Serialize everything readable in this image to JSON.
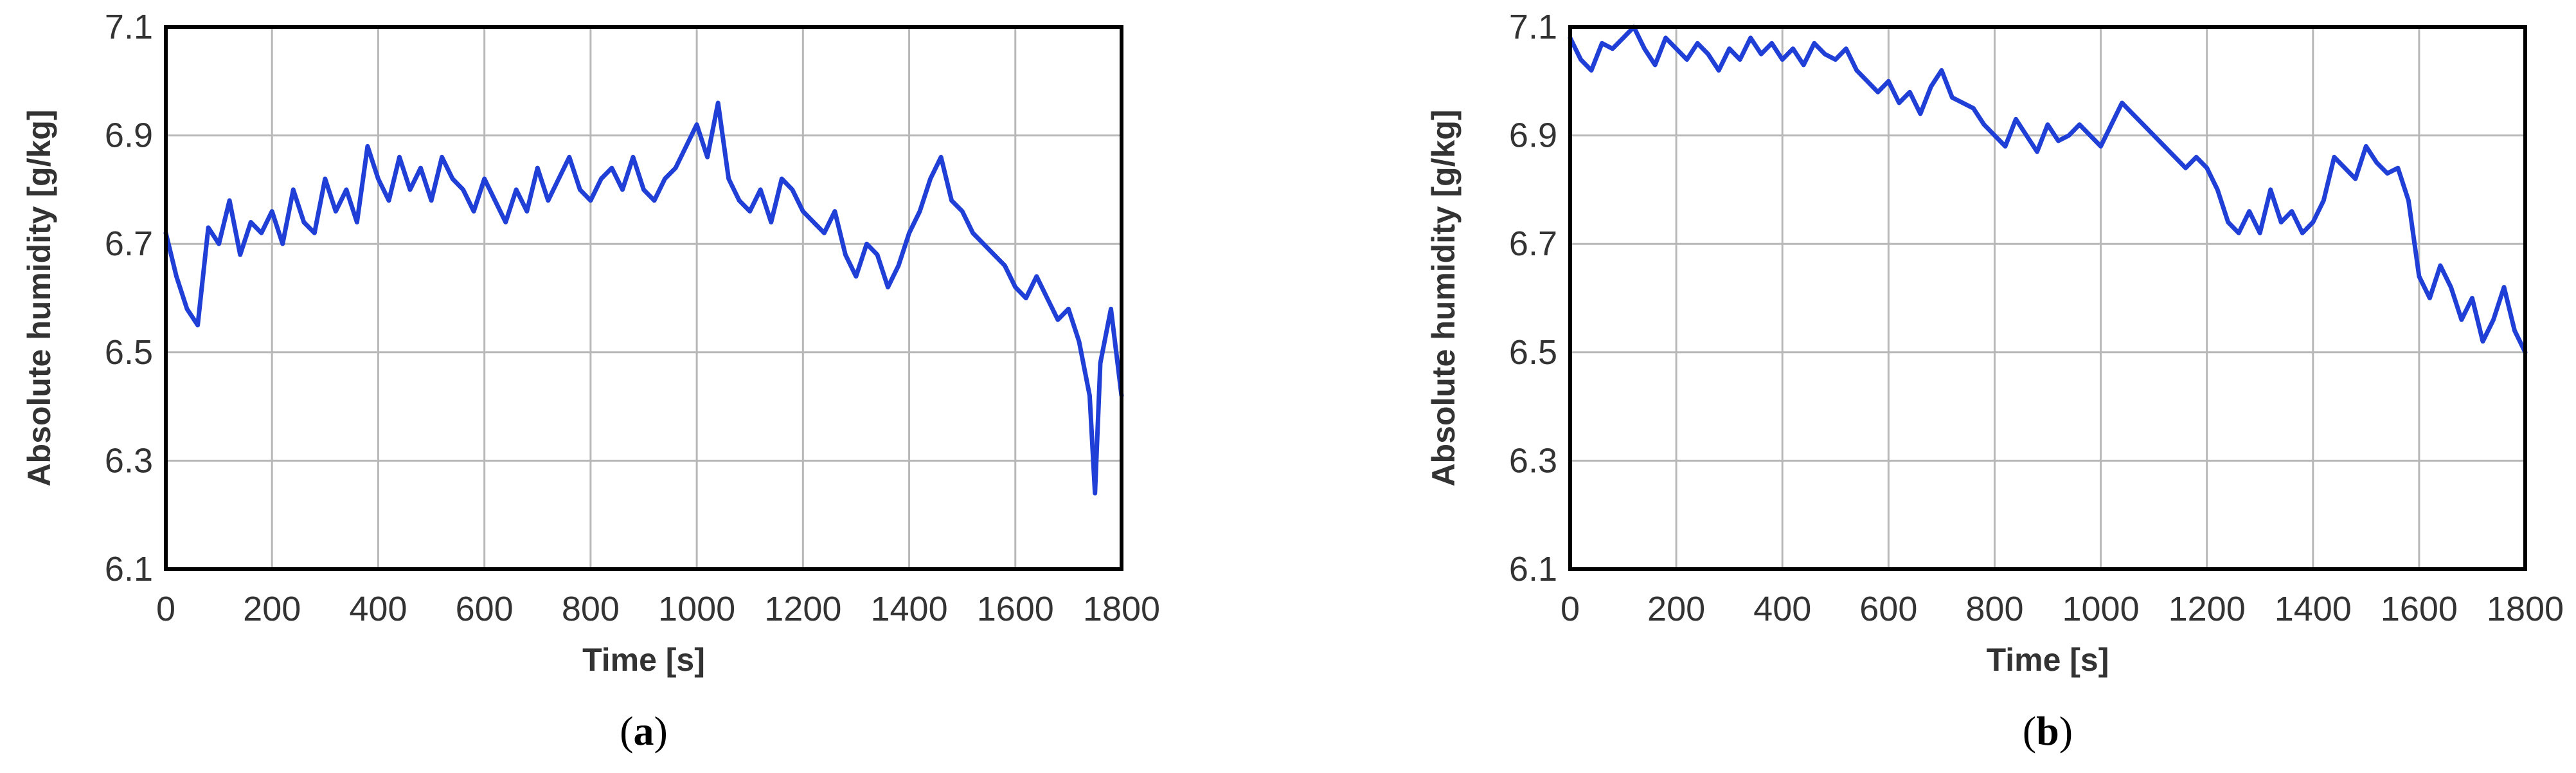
{
  "chart_data": [
    {
      "type": "line",
      "panel_label": "a",
      "xlabel": "Time [s]",
      "ylabel": "Absolute humidity [g/kg]",
      "xlim": [
        0,
        1800
      ],
      "ylim": [
        6.1,
        7.1
      ],
      "xticks": [
        "0",
        "200",
        "400",
        "600",
        "800",
        "1000",
        "1200",
        "1400",
        "1600",
        "1800"
      ],
      "yticks": [
        "6.1",
        "6.3",
        "6.5",
        "6.7",
        "6.9",
        "7.1"
      ],
      "grid": true,
      "series_color": "#1f3fd6",
      "x": [
        0,
        20,
        40,
        60,
        80,
        100,
        120,
        140,
        160,
        180,
        200,
        220,
        240,
        260,
        280,
        300,
        320,
        340,
        360,
        380,
        400,
        420,
        440,
        460,
        480,
        500,
        520,
        540,
        560,
        580,
        600,
        620,
        640,
        660,
        680,
        700,
        720,
        740,
        760,
        780,
        800,
        820,
        840,
        860,
        880,
        900,
        920,
        940,
        960,
        980,
        1000,
        1020,
        1040,
        1060,
        1080,
        1100,
        1120,
        1140,
        1160,
        1180,
        1200,
        1220,
        1240,
        1260,
        1280,
        1300,
        1320,
        1340,
        1360,
        1380,
        1400,
        1420,
        1440,
        1460,
        1480,
        1500,
        1520,
        1540,
        1560,
        1580,
        1600,
        1620,
        1640,
        1660,
        1680,
        1700,
        1720,
        1740,
        1750,
        1760,
        1780,
        1800
      ],
      "y": [
        6.72,
        6.64,
        6.58,
        6.55,
        6.73,
        6.7,
        6.78,
        6.68,
        6.74,
        6.72,
        6.76,
        6.7,
        6.8,
        6.74,
        6.72,
        6.82,
        6.76,
        6.8,
        6.74,
        6.88,
        6.82,
        6.78,
        6.86,
        6.8,
        6.84,
        6.78,
        6.86,
        6.82,
        6.8,
        6.76,
        6.82,
        6.78,
        6.74,
        6.8,
        6.76,
        6.84,
        6.78,
        6.82,
        6.86,
        6.8,
        6.78,
        6.82,
        6.84,
        6.8,
        6.86,
        6.8,
        6.78,
        6.82,
        6.84,
        6.88,
        6.92,
        6.86,
        6.96,
        6.82,
        6.78,
        6.76,
        6.8,
        6.74,
        6.82,
        6.8,
        6.76,
        6.74,
        6.72,
        6.76,
        6.68,
        6.64,
        6.7,
        6.68,
        6.62,
        6.66,
        6.72,
        6.76,
        6.82,
        6.86,
        6.78,
        6.76,
        6.72,
        6.7,
        6.68,
        6.66,
        6.62,
        6.6,
        6.64,
        6.6,
        6.56,
        6.58,
        6.52,
        6.42,
        6.24,
        6.48,
        6.58,
        6.42
      ]
    },
    {
      "type": "line",
      "panel_label": "b",
      "xlabel": "Time [s]",
      "ylabel": "Absolute humidity [g/kg]",
      "xlim": [
        0,
        1800
      ],
      "ylim": [
        6.1,
        7.1
      ],
      "xticks": [
        "0",
        "200",
        "400",
        "600",
        "800",
        "1000",
        "1200",
        "1400",
        "1600",
        "1800"
      ],
      "yticks": [
        "6.1",
        "6.3",
        "6.5",
        "6.7",
        "6.9",
        "7.1"
      ],
      "grid": true,
      "series_color": "#1f3fd6",
      "x": [
        0,
        20,
        40,
        60,
        80,
        100,
        120,
        140,
        160,
        180,
        200,
        220,
        240,
        260,
        280,
        300,
        320,
        340,
        360,
        380,
        400,
        420,
        440,
        460,
        480,
        500,
        520,
        540,
        560,
        580,
        600,
        620,
        640,
        660,
        680,
        700,
        720,
        740,
        760,
        780,
        800,
        820,
        840,
        860,
        880,
        900,
        920,
        940,
        960,
        980,
        1000,
        1020,
        1040,
        1060,
        1080,
        1100,
        1120,
        1140,
        1160,
        1180,
        1200,
        1220,
        1240,
        1260,
        1280,
        1300,
        1320,
        1340,
        1360,
        1380,
        1400,
        1420,
        1440,
        1460,
        1480,
        1500,
        1520,
        1540,
        1560,
        1580,
        1600,
        1620,
        1640,
        1660,
        1680,
        1700,
        1720,
        1740,
        1760,
        1780,
        1800
      ],
      "y": [
        7.08,
        7.04,
        7.02,
        7.07,
        7.06,
        7.08,
        7.1,
        7.06,
        7.03,
        7.08,
        7.06,
        7.04,
        7.07,
        7.05,
        7.02,
        7.06,
        7.04,
        7.08,
        7.05,
        7.07,
        7.04,
        7.06,
        7.03,
        7.07,
        7.05,
        7.04,
        7.06,
        7.02,
        7.0,
        6.98,
        7.0,
        6.96,
        6.98,
        6.94,
        6.99,
        7.02,
        6.97,
        6.96,
        6.95,
        6.92,
        6.9,
        6.88,
        6.93,
        6.9,
        6.87,
        6.92,
        6.89,
        6.9,
        6.92,
        6.9,
        6.88,
        6.92,
        6.96,
        6.94,
        6.92,
        6.9,
        6.88,
        6.86,
        6.84,
        6.86,
        6.84,
        6.8,
        6.74,
        6.72,
        6.76,
        6.72,
        6.8,
        6.74,
        6.76,
        6.72,
        6.74,
        6.78,
        6.86,
        6.84,
        6.82,
        6.88,
        6.85,
        6.83,
        6.84,
        6.78,
        6.64,
        6.6,
        6.66,
        6.62,
        6.56,
        6.6,
        6.52,
        6.56,
        6.62,
        6.54,
        6.5
      ]
    }
  ]
}
